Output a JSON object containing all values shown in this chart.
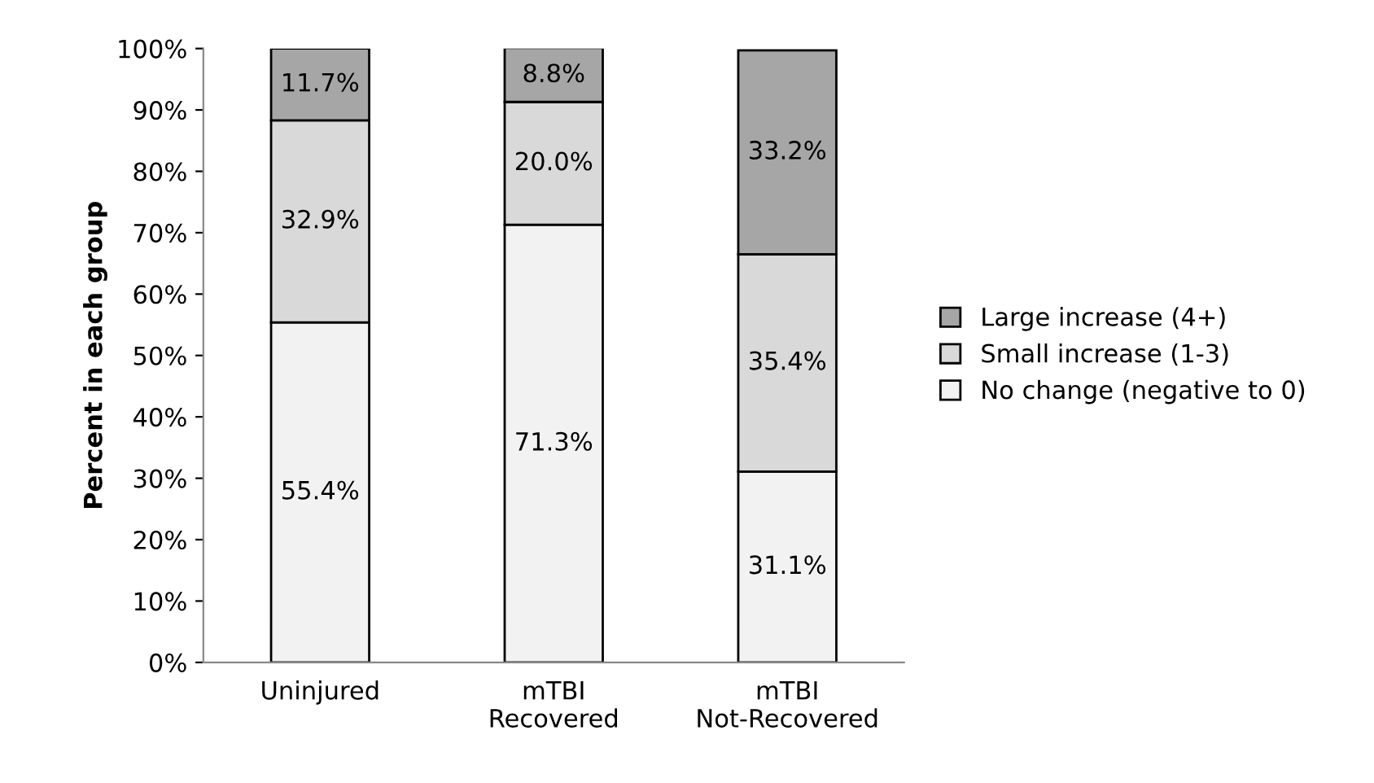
{
  "chart_data": {
    "type": "bar",
    "stacked": true,
    "ylabel": "Percent in each group",
    "categories": [
      "Uninjured",
      "mTBI\nRecovered",
      "mTBI\nNot-Recovered"
    ],
    "series": [
      {
        "name": "No change (negative to 0)",
        "color": "#f2f2f2",
        "values": [
          55.4,
          71.3,
          31.1
        ],
        "value_labels": [
          "55.4%",
          "71.3%",
          "31.1%"
        ]
      },
      {
        "name": "Small increase (1-3)",
        "color": "#d9d9d9",
        "values": [
          32.9,
          20.0,
          35.4
        ],
        "value_labels": [
          "32.9%",
          "20.0%",
          "35.4%"
        ]
      },
      {
        "name": "Large increase (4+)",
        "color": "#a6a6a6",
        "values": [
          11.7,
          8.8,
          33.2
        ],
        "value_labels": [
          "11.7%",
          "8.8%",
          "33.2%"
        ]
      }
    ],
    "ylim": [
      0,
      100
    ],
    "yticks": [
      {
        "value": 0,
        "label": "0%"
      },
      {
        "value": 10,
        "label": "10%"
      },
      {
        "value": 20,
        "label": "20%"
      },
      {
        "value": 30,
        "label": "30%"
      },
      {
        "value": 40,
        "label": "40%"
      },
      {
        "value": 50,
        "label": "50%"
      },
      {
        "value": 60,
        "label": "60%"
      },
      {
        "value": 70,
        "label": "70%"
      },
      {
        "value": 80,
        "label": "80%"
      },
      {
        "value": 90,
        "label": "90%"
      },
      {
        "value": 100,
        "label": "100%"
      }
    ],
    "grid": false,
    "legend": "right"
  }
}
